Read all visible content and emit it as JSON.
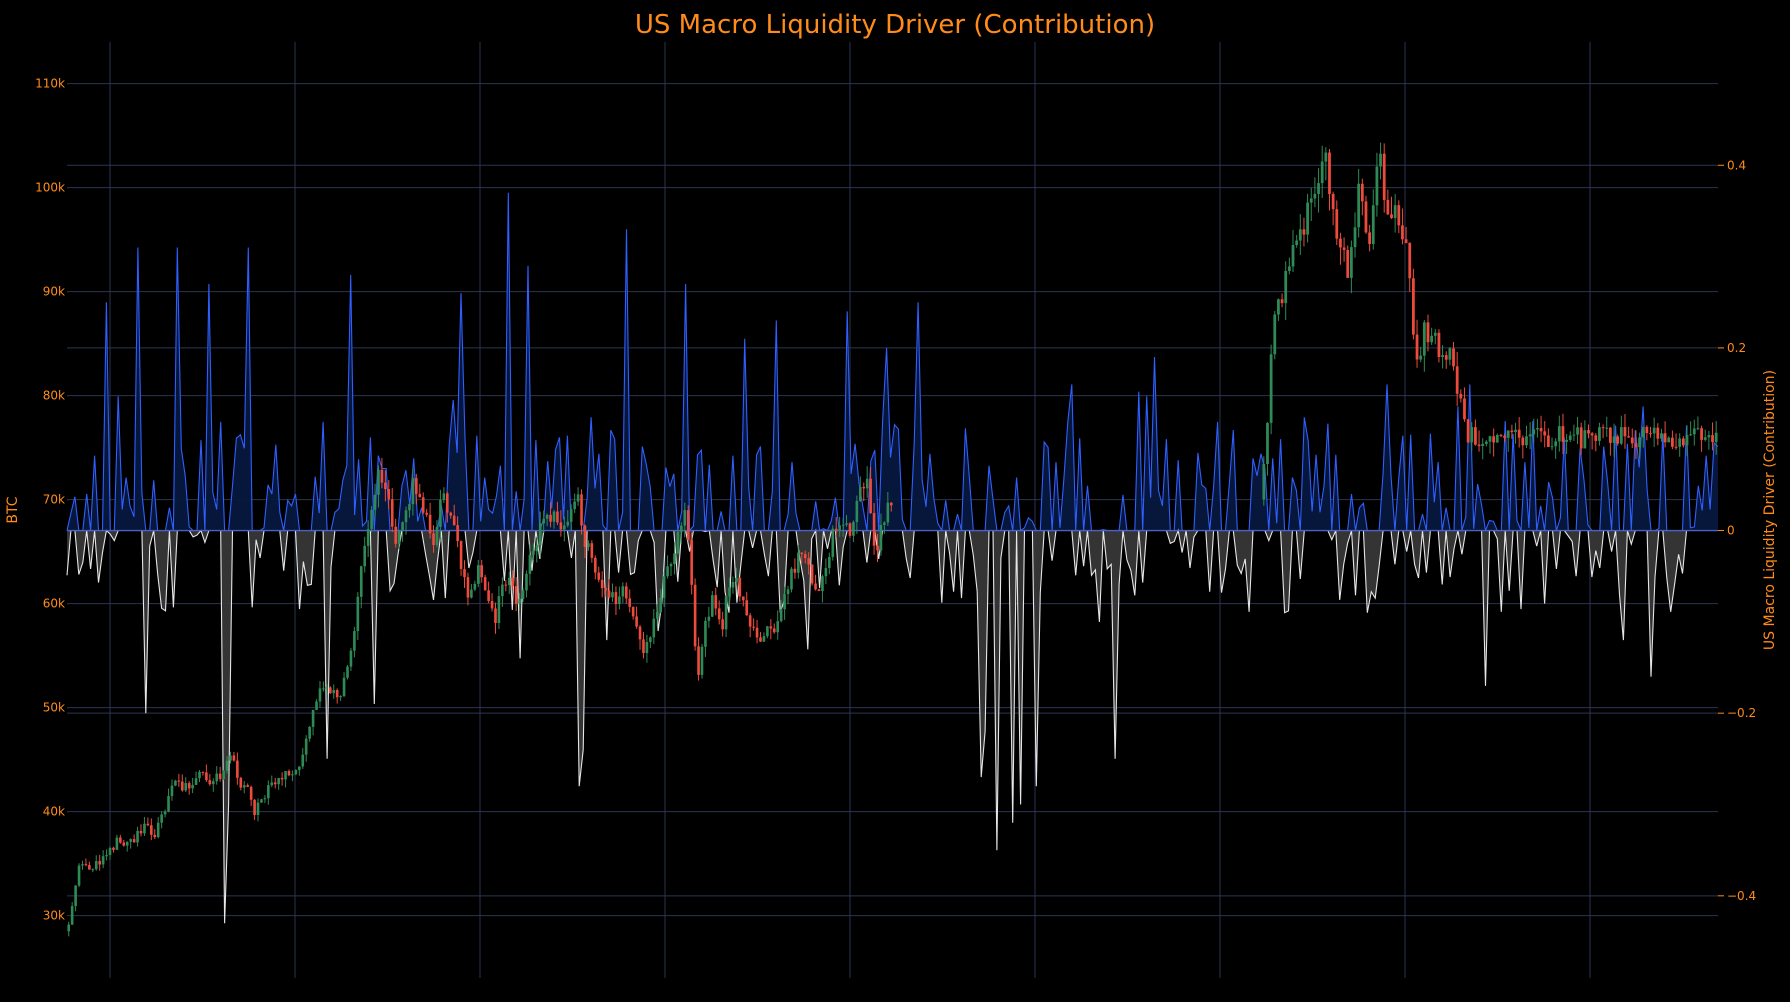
{
  "chart_data": {
    "type": "candlestick+area",
    "title": "US Macro Liquidity Driver (Contribution)",
    "left_axis": {
      "label": "BTC",
      "range": [
        24000,
        114000
      ],
      "ticks": [
        30000,
        40000,
        50000,
        60000,
        70000,
        80000,
        90000,
        100000,
        110000
      ],
      "tick_labels": [
        "30k",
        "40k",
        "50k",
        "60k",
        "70k",
        "80k",
        "90k",
        "100k",
        "110k"
      ]
    },
    "right_axis": {
      "label": "US Macro Liquidity Driver (Contribution)",
      "range": [
        -0.49,
        0.535
      ],
      "ticks": [
        -0.4,
        -0.2,
        0,
        0.2,
        0.4
      ],
      "tick_labels": [
        "−0.4",
        "−0.2",
        "0",
        "0.2",
        "0.4"
      ]
    },
    "vertical_gridlines": 9,
    "grid": true,
    "colors": {
      "background": "#000000",
      "text": "#ff8c1a",
      "grid": "#2b3550",
      "up_candle": "#2e8b57",
      "down_candle": "#ef4b3c",
      "positive_line": "#2f5fff",
      "positive_fill": "#06183e",
      "negative_line": "#e6e6e6",
      "negative_fill": "#3a3a3a",
      "zero_line": "#4a62c8"
    },
    "btc_price_path": [
      [
        0,
        28500
      ],
      [
        0.01,
        31000
      ],
      [
        0.015,
        34500
      ],
      [
        0.03,
        34800
      ],
      [
        0.045,
        35500
      ],
      [
        0.06,
        37000
      ],
      [
        0.08,
        37200
      ],
      [
        0.09,
        37800
      ],
      [
        0.095,
        38500
      ],
      [
        0.11,
        38000
      ],
      [
        0.125,
        41000
      ],
      [
        0.13,
        43500
      ],
      [
        0.14,
        42000
      ],
      [
        0.16,
        43500
      ],
      [
        0.18,
        42800
      ],
      [
        0.19,
        44000
      ],
      [
        0.2,
        46000
      ],
      [
        0.21,
        43000
      ],
      [
        0.225,
        41500
      ],
      [
        0.23,
        40000
      ],
      [
        0.25,
        42500
      ],
      [
        0.27,
        43500
      ],
      [
        0.285,
        44500
      ],
      [
        0.295,
        48000
      ],
      [
        0.31,
        51500
      ],
      [
        0.325,
        52000
      ],
      [
        0.335,
        51200
      ],
      [
        0.345,
        55000
      ],
      [
        0.355,
        61000
      ],
      [
        0.365,
        67000
      ],
      [
        0.375,
        70000
      ],
      [
        0.38,
        73000
      ],
      [
        0.39,
        71000
      ],
      [
        0.4,
        66000
      ],
      [
        0.41,
        68000
      ],
      [
        0.42,
        71500
      ],
      [
        0.435,
        69000
      ],
      [
        0.445,
        66000
      ],
      [
        0.455,
        70500
      ],
      [
        0.47,
        67000
      ],
      [
        0.48,
        64000
      ],
      [
        0.49,
        60000
      ],
      [
        0.5,
        64000
      ],
      [
        0.51,
        61500
      ],
      [
        0.52,
        57500
      ],
      [
        0.53,
        62500
      ],
      [
        0.54,
        63000
      ],
      [
        0.545,
        60000
      ],
      [
        0.555,
        62000
      ],
      [
        0.565,
        64500
      ],
      [
        0.575,
        67000
      ],
      [
        0.585,
        68000
      ],
      [
        0.6,
        67800
      ],
      [
        0.61,
        69000
      ],
      [
        0.62,
        70500
      ],
      [
        0.625,
        67000
      ],
      [
        0.635,
        65000
      ],
      [
        0.645,
        63000
      ],
      [
        0.655,
        61000
      ],
      [
        0.665,
        60000
      ],
      [
        0.675,
        61500
      ],
      [
        0.685,
        59000
      ],
      [
        0.695,
        57500
      ],
      [
        0.7,
        55500
      ],
      [
        0.71,
        57000
      ],
      [
        0.72,
        61000
      ],
      [
        0.73,
        64000
      ],
      [
        0.74,
        66000
      ],
      [
        0.75,
        68500
      ],
      [
        0.755,
        65000
      ],
      [
        0.76,
        60000
      ],
      [
        0.765,
        53000
      ],
      [
        0.775,
        58000
      ],
      [
        0.785,
        61000
      ],
      [
        0.795,
        57000
      ],
      [
        0.8,
        60000
      ],
      [
        0.81,
        62500
      ],
      [
        0.82,
        60000
      ],
      [
        0.83,
        58500
      ],
      [
        0.84,
        55500
      ],
      [
        0.85,
        57500
      ],
      [
        0.86,
        58000
      ],
      [
        0.87,
        60500
      ],
      [
        0.88,
        63000
      ],
      [
        0.89,
        65500
      ],
      [
        0.9,
        64000
      ],
      [
        0.91,
        61000
      ],
      [
        0.92,
        64000
      ],
      [
        0.93,
        66500
      ],
      [
        0.94,
        68500
      ],
      [
        0.95,
        67000
      ],
      [
        0.96,
        71000
      ],
      [
        0.97,
        72500
      ],
      [
        0.975,
        68000
      ],
      [
        0.98,
        64500
      ],
      [
        0.99,
        68000
      ],
      [
        1.0,
        70000
      ]
    ],
    "btc_price_path_2": [
      [
        0,
        70000
      ],
      [
        0.01,
        75500
      ],
      [
        0.02,
        80500
      ],
      [
        0.03,
        87000
      ],
      [
        0.045,
        88500
      ],
      [
        0.06,
        91500
      ],
      [
        0.075,
        95500
      ],
      [
        0.09,
        95000
      ],
      [
        0.1,
        96000
      ],
      [
        0.11,
        101000
      ],
      [
        0.12,
        98000
      ],
      [
        0.13,
        100000
      ],
      [
        0.14,
        104000
      ],
      [
        0.15,
        101000
      ],
      [
        0.16,
        97000
      ],
      [
        0.17,
        94000
      ],
      [
        0.18,
        96000
      ],
      [
        0.19,
        92000
      ],
      [
        0.2,
        95000
      ],
      [
        0.21,
        97500
      ],
      [
        0.22,
        102000
      ],
      [
        0.23,
        96500
      ],
      [
        0.24,
        93500
      ],
      [
        0.25,
        98000
      ],
      [
        0.26,
        103500
      ],
      [
        0.27,
        100000
      ],
      [
        0.28,
        97000
      ],
      [
        0.29,
        98000
      ],
      [
        0.3,
        96500
      ],
      [
        0.315,
        95500
      ],
      [
        0.33,
        91500
      ],
      [
        0.34,
        84000
      ],
      [
        0.35,
        82000
      ],
      [
        0.36,
        86000
      ],
      [
        0.37,
        84500
      ],
      [
        0.38,
        85500
      ],
      [
        0.39,
        84000
      ],
      [
        0.4,
        84500
      ],
      [
        0.41,
        82500
      ],
      [
        0.42,
        85000
      ],
      [
        0.43,
        80500
      ],
      [
        0.44,
        79000
      ],
      [
        0.45,
        77500
      ],
      [
        0.455,
        76000
      ]
    ],
    "liquidity_contribution": []
  }
}
